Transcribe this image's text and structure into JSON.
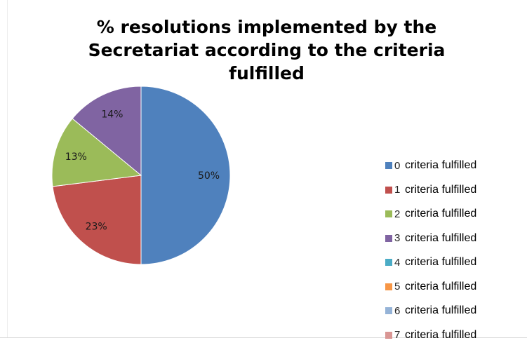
{
  "chart_data": {
    "type": "pie",
    "title": "% resolutions implemented by the\nSecretariat according to the criteria\nfulfilled",
    "slices": [
      {
        "num": "0",
        "name": "criteria fulfilled",
        "value": 50,
        "label": "50%",
        "color": "#4F81BD"
      },
      {
        "num": "1",
        "name": "criteria fulfilled",
        "value": 23,
        "label": "23%",
        "color": "#C0504D"
      },
      {
        "num": "2",
        "name": "criteria fulfilled",
        "value": 13,
        "label": "13%",
        "color": "#9BBB59"
      },
      {
        "num": "3",
        "name": "criteria fulfilled",
        "value": 14,
        "label": "14%",
        "color": "#8064A2"
      },
      {
        "num": "4",
        "name": "criteria fulfilled",
        "value": 0,
        "label": "",
        "color": "#4BACC6"
      },
      {
        "num": "5",
        "name": "criteria fulfilled",
        "value": 0,
        "label": "",
        "color": "#F79646"
      },
      {
        "num": "6",
        "name": "criteria fulfilled",
        "value": 0,
        "label": "",
        "color": "#95B3D7"
      },
      {
        "num": "7",
        "name": "criteria fulfilled",
        "value": 0,
        "label": "",
        "color": "#D99694"
      }
    ],
    "legend_position": "right"
  }
}
